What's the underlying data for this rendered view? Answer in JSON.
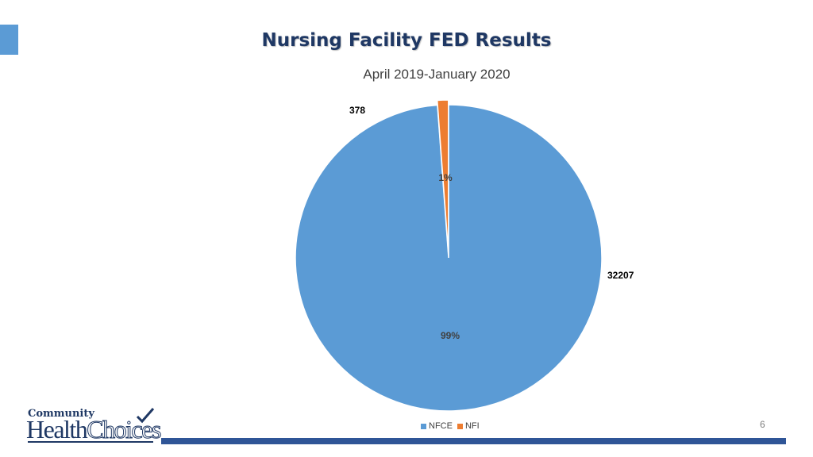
{
  "slide": {
    "title": "Nursing Facility FED Results",
    "page_number": "6"
  },
  "logo": {
    "line1": "Community",
    "line2_part1": "Health",
    "line2_part2": "Choices"
  },
  "colors": {
    "accent": "#5b9bd5",
    "NFCE": "#5b9bd5",
    "NFI": "#ed7d31",
    "title": "#1f3864",
    "bar": "#2f5597"
  },
  "chart_data": {
    "type": "pie",
    "title": "April 2019-January 2020",
    "categories": [
      "NFCE",
      "NFI"
    ],
    "values": [
      32207,
      378
    ],
    "percent_labels": [
      "99%",
      "1%"
    ],
    "value_labels": [
      "32207",
      "378"
    ],
    "legend_position": "bottom",
    "legend": [
      "NFCE",
      "NFI"
    ]
  }
}
